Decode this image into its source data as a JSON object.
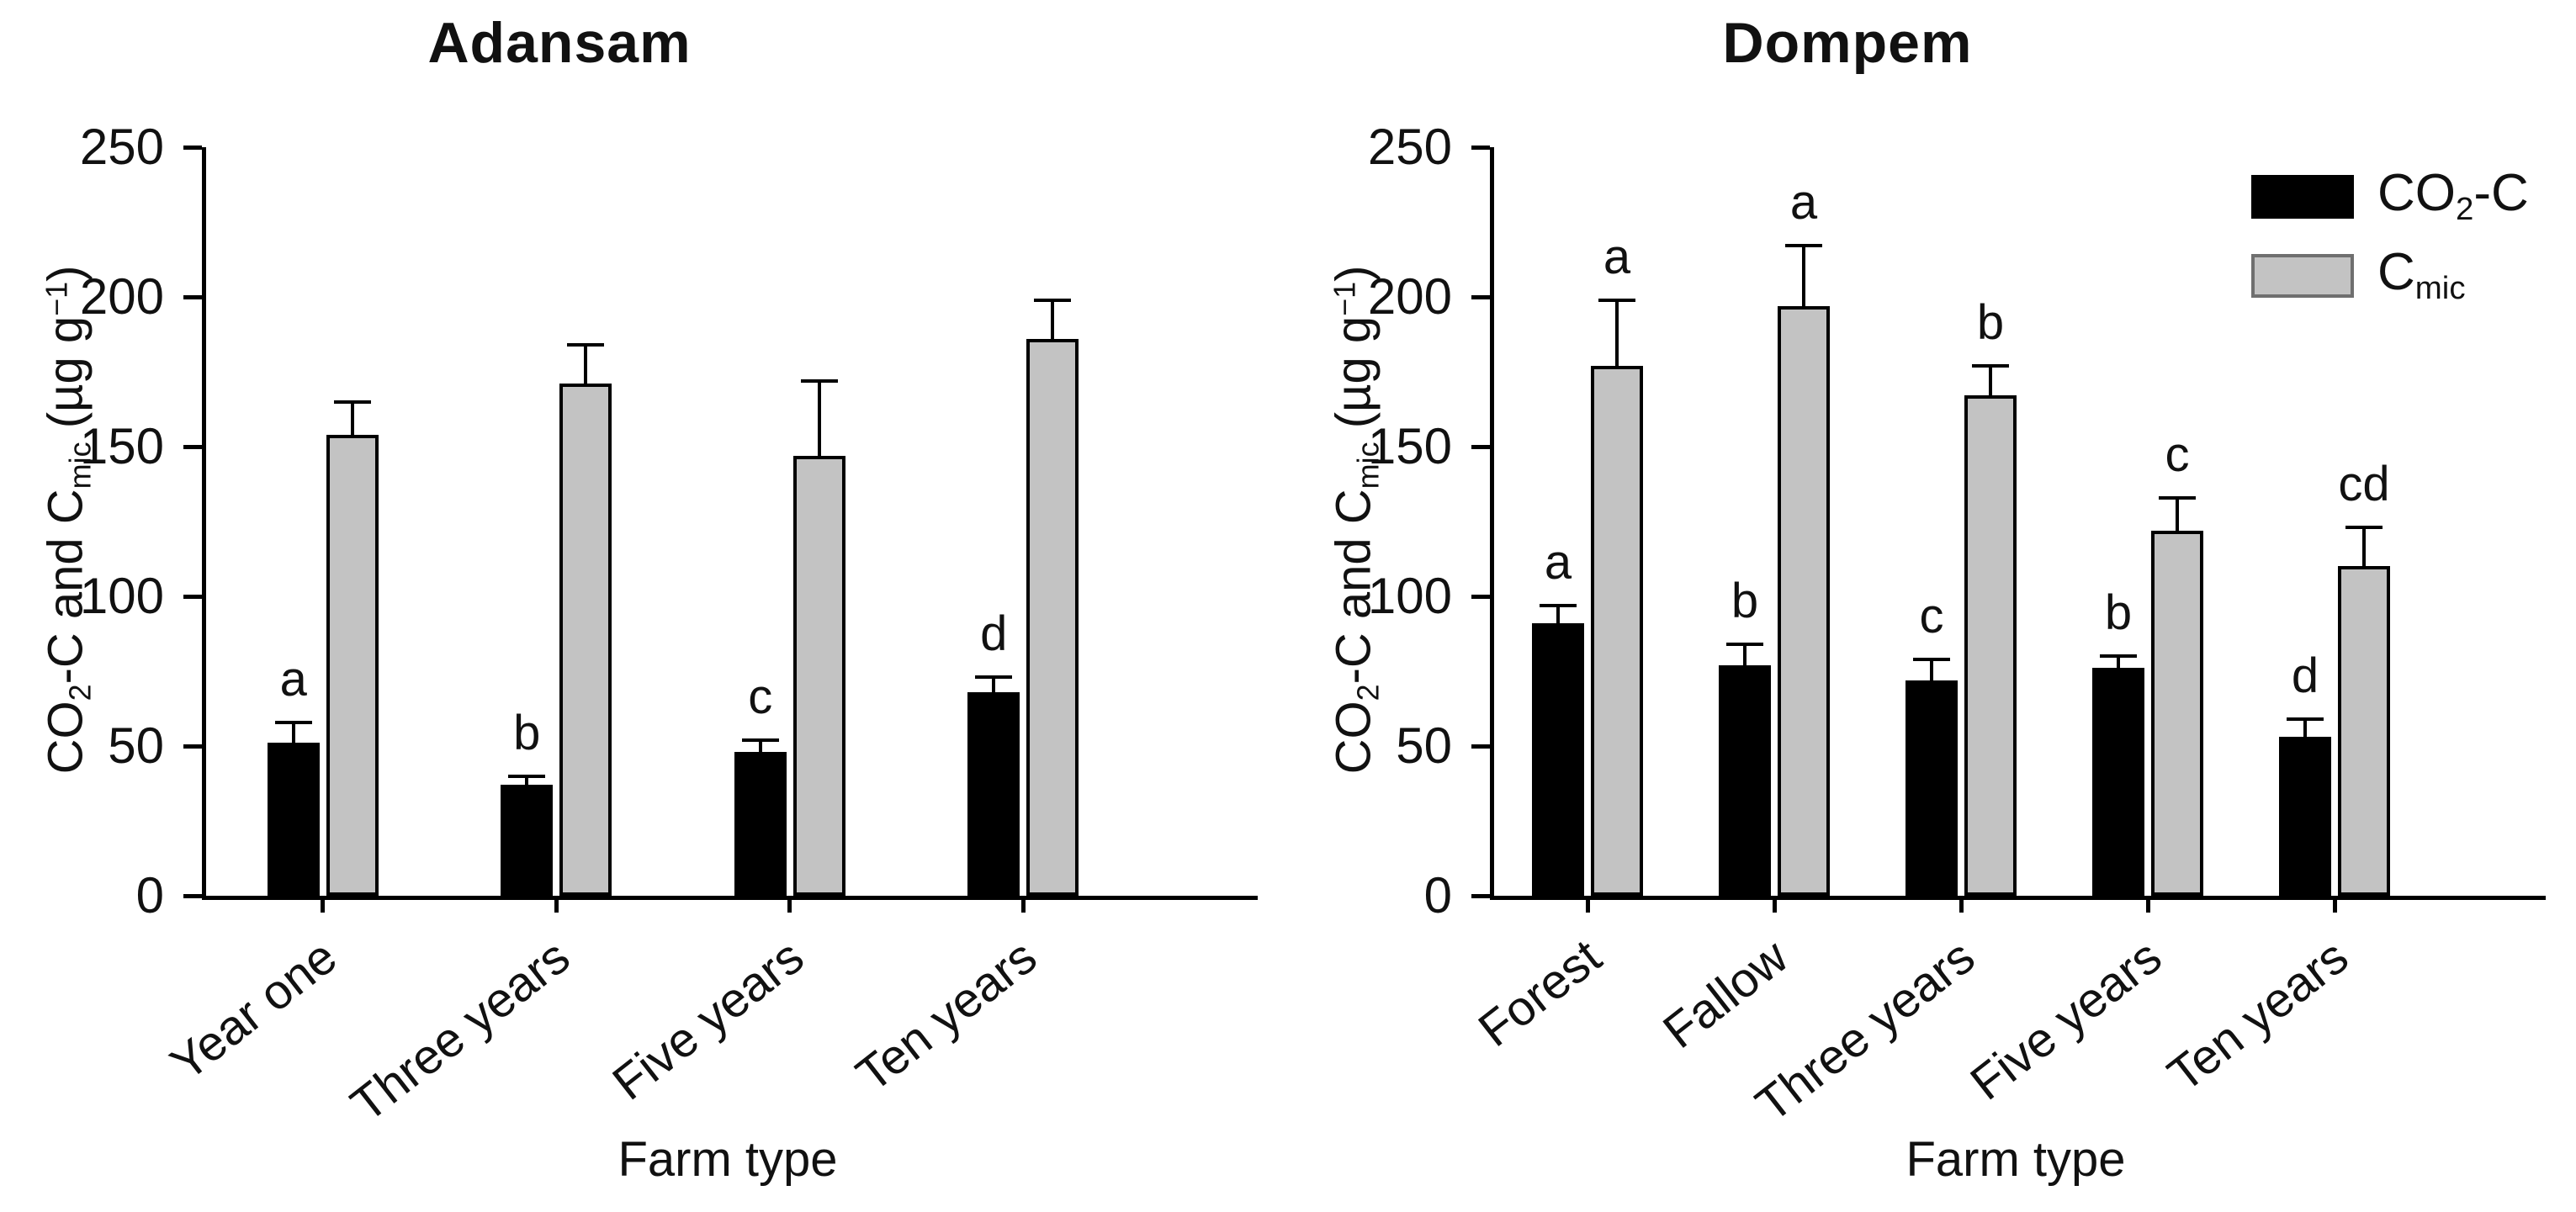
{
  "page": {
    "background": "#ffffff",
    "bar_black": "#000000",
    "bar_gray": "#c3c3c3"
  },
  "chart_data": [
    {
      "type": "bar",
      "title": "Adansam",
      "xlabel": "Farm type",
      "ylabel_rich": [
        "CO",
        {
          "sub": "2"
        },
        "-C and C",
        {
          "sub": "mic"
        },
        " (µg g",
        {
          "sup": "−1"
        },
        ")"
      ],
      "ylim": [
        0,
        250
      ],
      "yticks": [
        0,
        50,
        100,
        150,
        200,
        250
      ],
      "grid": false,
      "legend_position": null,
      "categories": [
        "Year one",
        "Three years",
        "Five years",
        "Ten years"
      ],
      "series": [
        {
          "name": "CO2-C",
          "color": "#000000",
          "border_color": "#000000",
          "values": [
            51,
            37,
            48,
            68
          ],
          "errors": [
            7,
            3,
            4,
            5
          ],
          "letters": [
            "a",
            "b",
            "c",
            "d"
          ]
        },
        {
          "name": "Cmic",
          "color": "#c3c3c3",
          "border_color": "#000000",
          "values": [
            154,
            171,
            147,
            186
          ],
          "errors": [
            11,
            13,
            25,
            13
          ],
          "letters": [
            "",
            "",
            "",
            ""
          ]
        }
      ],
      "legend": null
    },
    {
      "type": "bar",
      "title": "Dompem",
      "xlabel": "Farm type",
      "ylabel_rich": [
        "CO",
        {
          "sub": "2"
        },
        "-C and C",
        {
          "sub": "mic"
        },
        " (µg g",
        {
          "sup": "−1"
        },
        ")"
      ],
      "ylim": [
        0,
        250
      ],
      "yticks": [
        0,
        50,
        100,
        150,
        200,
        250
      ],
      "grid": false,
      "legend_position": "top-right",
      "categories": [
        "Forest",
        "Fallow",
        "Three years",
        "Five years",
        "Ten years"
      ],
      "series": [
        {
          "name": "CO2-C",
          "color": "#000000",
          "border_color": "#000000",
          "values": [
            91,
            77,
            72,
            76,
            53
          ],
          "errors": [
            6,
            7,
            7,
            4,
            6
          ],
          "letters": [
            "a",
            "b",
            "c",
            "b",
            "d"
          ]
        },
        {
          "name": "Cmic",
          "color": "#c3c3c3",
          "border_color": "#000000",
          "values": [
            177,
            197,
            167,
            122,
            110
          ],
          "errors": [
            22,
            20,
            10,
            11,
            13
          ],
          "letters": [
            "a",
            "a",
            "b",
            "c",
            "cd"
          ]
        }
      ],
      "legend": {
        "position": "top-right",
        "items": [
          {
            "label": "CO2-C",
            "label_rich": [
              "CO",
              {
                "sub": "2"
              },
              "-C"
            ],
            "color": "#000000",
            "border_color": "#000000"
          },
          {
            "label": "Cmic",
            "label_rich": [
              "C",
              {
                "sub": "mic"
              }
            ],
            "color": "#c3c3c3",
            "border_color": "#6f6f6f"
          }
        ]
      }
    }
  ]
}
